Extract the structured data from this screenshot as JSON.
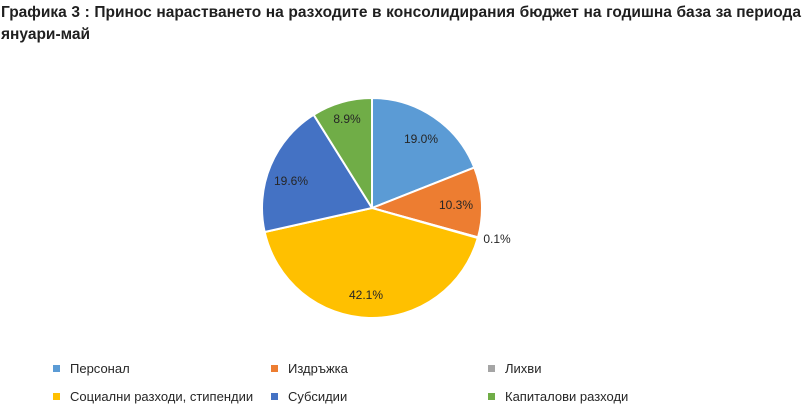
{
  "title": "Графика 3 : Принос нарастването на разходите в консолидирания бюджет на годишна база за периода януари-май",
  "chart_data": {
    "type": "pie",
    "title": "Графика 3 : Принос нарастването на разходите в консолидирания бюджет на годишна база за периода януари-май",
    "legend_position": "bottom",
    "start_angle_deg": 0,
    "direction": "clockwise",
    "slices": [
      {
        "name": "Персонал",
        "value": 19.0,
        "label": "19.0%",
        "color": "#5B9BD5"
      },
      {
        "name": "Издръжка",
        "value": 10.3,
        "label": "10.3%",
        "color": "#ED7D31"
      },
      {
        "name": "Лихви",
        "value": 0.1,
        "label": "0.1%",
        "color": "#A5A5A5"
      },
      {
        "name": "Социални разходи, стипендии",
        "value": 42.1,
        "label": "42.1%",
        "color": "#FFC000"
      },
      {
        "name": "Субсидии",
        "value": 19.6,
        "label": "19.6%",
        "color": "#4472C4"
      },
      {
        "name": "Капиталови разходи",
        "value": 8.9,
        "label": "8.9%",
        "color": "#70AD47"
      }
    ]
  }
}
